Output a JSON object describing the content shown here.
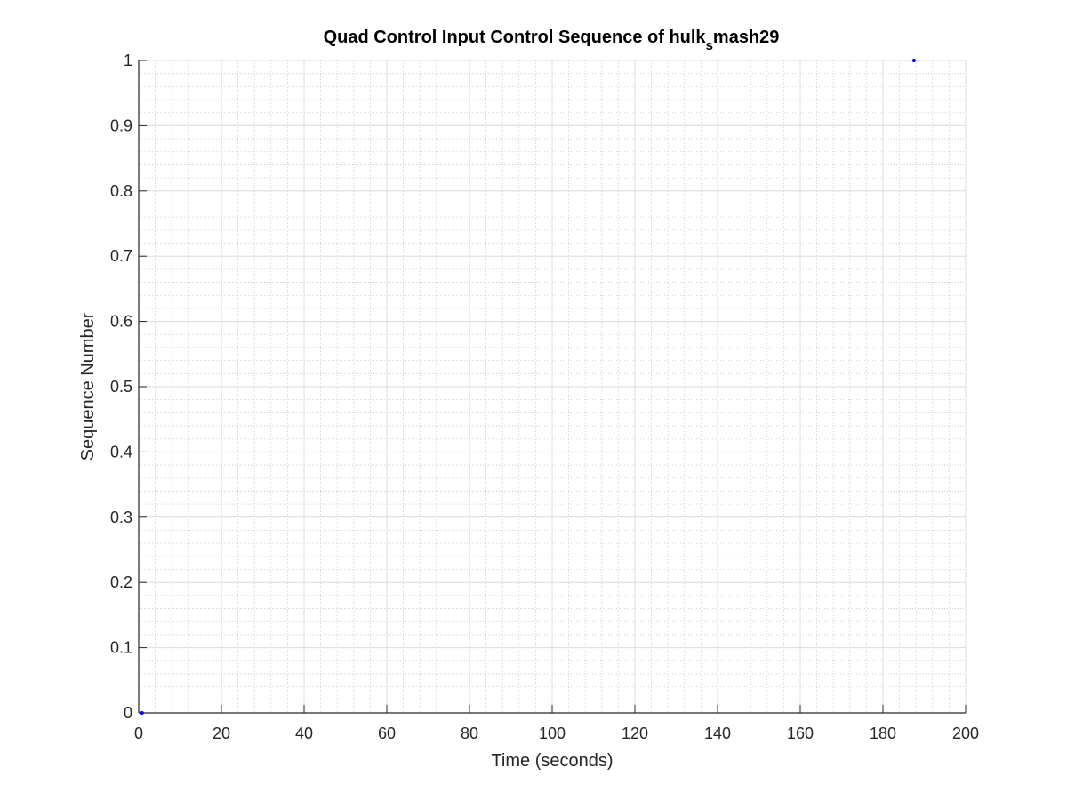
{
  "chart_data": {
    "type": "scatter",
    "title": {
      "main": "Quad Control Input Control Sequence of hulk",
      "subscript": "s",
      "suffix": "mash29"
    },
    "xlabel": "Time (seconds)",
    "ylabel": "Sequence Number",
    "xlim": [
      0,
      200
    ],
    "ylim": [
      0,
      1
    ],
    "xticks": [
      0,
      20,
      40,
      60,
      80,
      100,
      120,
      140,
      160,
      180,
      200
    ],
    "yticks": [
      0,
      0.1,
      0.2,
      0.3,
      0.4,
      0.5,
      0.6,
      0.7,
      0.8,
      0.9,
      1
    ],
    "xtick_labels": [
      "0",
      "20",
      "40",
      "60",
      "80",
      "100",
      "120",
      "140",
      "160",
      "180",
      "200"
    ],
    "ytick_labels": [
      "0",
      "0.1",
      "0.2",
      "0.3",
      "0.4",
      "0.5",
      "0.6",
      "0.7",
      "0.8",
      "0.9",
      "1"
    ],
    "grid": true,
    "minor_grid": true,
    "series": [
      {
        "x": [
          0.8,
          187.5
        ],
        "y": [
          0,
          1
        ],
        "color": "#0000ff"
      }
    ]
  }
}
